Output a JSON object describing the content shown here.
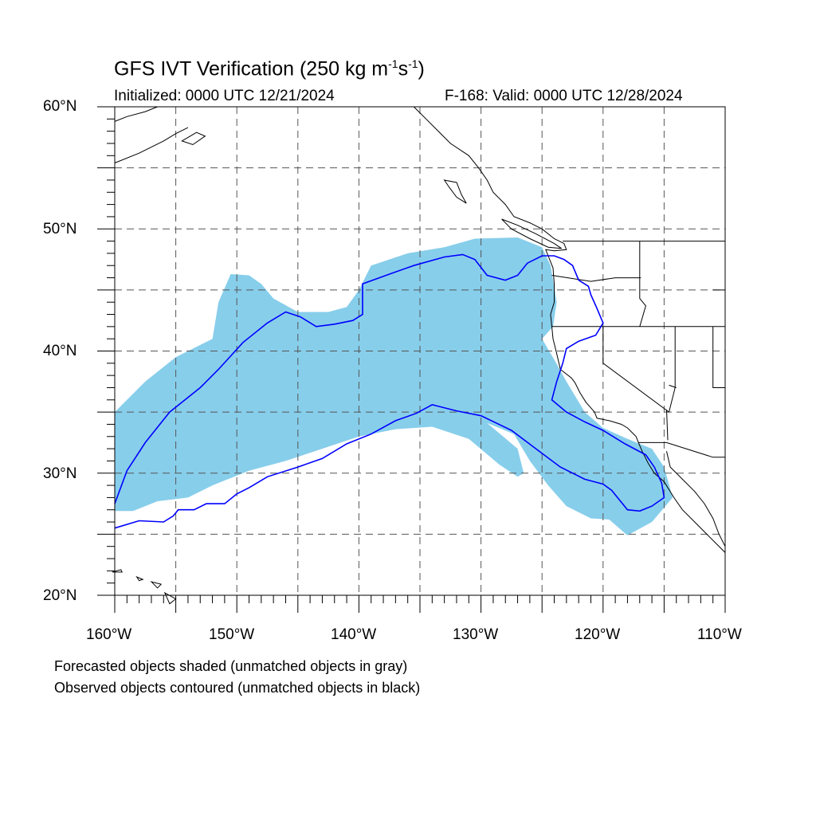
{
  "title": {
    "main": "GFS IVT Verification (250 kg m",
    "exp1": "-1",
    "mid": "s",
    "exp2": "-1",
    "end": ")"
  },
  "initialized": "Initialized: 0000 UTC 12/21/2024",
  "valid": "F-168: Valid: 0000 UTC 12/28/2024",
  "lat_labels": [
    "60°N",
    "50°N",
    "40°N",
    "30°N",
    "20°N"
  ],
  "lon_labels": [
    "160°W",
    "150°W",
    "140°W",
    "130°W",
    "120°W",
    "110°W"
  ],
  "notes": [
    "Forecasted objects shaded (unmatched objects in gray)",
    "Observed objects contoured (unmatched objects in black)"
  ],
  "extent": {
    "lon": [
      -160,
      -110
    ],
    "lat": [
      20,
      60
    ]
  },
  "colors": {
    "forecast_fill": "#87CEEB",
    "observed_contour": "#0000FF",
    "coast": "#000000",
    "grid": "#555555"
  },
  "forecast_object": {
    "outline": [
      [
        -160,
        35
      ],
      [
        -157.5,
        37.5
      ],
      [
        -155,
        39.5
      ],
      [
        -152,
        41
      ],
      [
        -151.5,
        44
      ],
      [
        -150.5,
        46.3
      ],
      [
        -149,
        46.2
      ],
      [
        -148,
        45.5
      ],
      [
        -147,
        44.3
      ],
      [
        -145,
        43.2
      ],
      [
        -142.5,
        43.2
      ],
      [
        -141,
        43.6
      ],
      [
        -140,
        45
      ],
      [
        -139,
        47
      ],
      [
        -136,
        48
      ],
      [
        -133,
        48.5
      ],
      [
        -130.5,
        49.2
      ],
      [
        -127,
        49.3
      ],
      [
        -125,
        48.5
      ],
      [
        -124.3,
        47
      ],
      [
        -123.8,
        44
      ],
      [
        -124.1,
        42
      ],
      [
        -125,
        41
      ],
      [
        -124,
        39.3
      ],
      [
        -123,
        37.5
      ],
      [
        -121.5,
        35
      ],
      [
        -120,
        33.7
      ],
      [
        -118,
        32.8
      ],
      [
        -116,
        32
      ],
      [
        -115,
        30.5
      ],
      [
        -114.3,
        28
      ],
      [
        -116,
        26
      ],
      [
        -118,
        24.9
      ],
      [
        -119.5,
        26.2
      ],
      [
        -121,
        26.3
      ],
      [
        -123,
        27.3
      ],
      [
        -124.5,
        29
      ],
      [
        -126,
        31
      ],
      [
        -127.3,
        33.2
      ],
      [
        -129.5,
        34.1
      ],
      [
        -127,
        32
      ],
      [
        -126.5,
        30
      ],
      [
        -127,
        29.7
      ],
      [
        -128.5,
        30.7
      ],
      [
        -131,
        32.8
      ],
      [
        -134,
        33.8
      ],
      [
        -137,
        33.6
      ],
      [
        -140,
        33
      ],
      [
        -143,
        32
      ],
      [
        -146,
        31
      ],
      [
        -149,
        30.2
      ],
      [
        -152,
        29
      ],
      [
        -154,
        28
      ],
      [
        -156.5,
        27.7
      ],
      [
        -158.5,
        26.9
      ],
      [
        -160,
        26.9
      ]
    ]
  },
  "observed_object": {
    "contour": [
      [
        -160,
        27.5
      ],
      [
        -159,
        30.2
      ],
      [
        -157.5,
        32.5
      ],
      [
        -155.5,
        35
      ],
      [
        -153,
        37
      ],
      [
        -151.5,
        38.5
      ],
      [
        -149.5,
        40.7
      ],
      [
        -147.5,
        42.3
      ],
      [
        -146,
        43.2
      ],
      [
        -144.8,
        42.8
      ],
      [
        -143.5,
        42
      ],
      [
        -142,
        42.2
      ],
      [
        -140.5,
        42.5
      ],
      [
        -139.7,
        43
      ],
      [
        -139.7,
        45.5
      ],
      [
        -137.5,
        46.3
      ],
      [
        -135.5,
        47
      ],
      [
        -133,
        47.7
      ],
      [
        -131.5,
        47.9
      ],
      [
        -130.5,
        47.5
      ],
      [
        -129.5,
        46.2
      ],
      [
        -128,
        45.8
      ],
      [
        -127,
        46.2
      ],
      [
        -126.2,
        47.2
      ],
      [
        -125,
        47.8
      ],
      [
        -124,
        47.8
      ],
      [
        -123.2,
        47.5
      ],
      [
        -122.5,
        47
      ],
      [
        -122,
        45.8
      ],
      [
        -121.2,
        45.3
      ],
      [
        -121,
        44.6
      ],
      [
        -120.5,
        43.5
      ],
      [
        -120,
        42.3
      ],
      [
        -120.6,
        41.3
      ],
      [
        -122,
        40.8
      ],
      [
        -123,
        40.2
      ],
      [
        -123.3,
        39
      ],
      [
        -123.8,
        37.5
      ],
      [
        -124.2,
        36
      ],
      [
        -123,
        35
      ],
      [
        -121.5,
        34.2
      ],
      [
        -120,
        33.5
      ],
      [
        -118.2,
        32.4
      ],
      [
        -116.5,
        31.5
      ],
      [
        -115.8,
        30.5
      ],
      [
        -115.2,
        29.2
      ],
      [
        -115,
        28
      ],
      [
        -116,
        27.3
      ],
      [
        -117,
        26.9
      ],
      [
        -118,
        27
      ],
      [
        -119.3,
        28.6
      ],
      [
        -120,
        29.1
      ],
      [
        -121.5,
        29.5
      ],
      [
        -123.5,
        30.5
      ],
      [
        -125.5,
        32
      ],
      [
        -127.5,
        33.5
      ],
      [
        -130,
        34.7
      ],
      [
        -132,
        35.1
      ],
      [
        -134,
        35.6
      ],
      [
        -135.3,
        34.9
      ],
      [
        -137,
        34.3
      ],
      [
        -139,
        33.2
      ],
      [
        -141,
        32.4
      ],
      [
        -143,
        31.2
      ],
      [
        -145,
        30.5
      ],
      [
        -147.5,
        29.7
      ],
      [
        -149,
        28.8
      ],
      [
        -150,
        28.3
      ],
      [
        -151,
        27.5
      ],
      [
        -152.5,
        27.5
      ],
      [
        -153.5,
        27
      ],
      [
        -154.8,
        27
      ],
      [
        -155.2,
        26.5
      ],
      [
        -156,
        26
      ],
      [
        -158,
        26.1
      ],
      [
        -160,
        25.5
      ]
    ]
  },
  "coastline": [
    [
      -135.5,
      60
    ],
    [
      -134.5,
      59
    ],
    [
      -133.5,
      58
    ],
    [
      -132.5,
      57
    ],
    [
      -131,
      56
    ],
    [
      -130.2,
      55
    ],
    [
      -129.5,
      54
    ],
    [
      -129,
      53
    ],
    [
      -128,
      52
    ],
    [
      -127.3,
      51
    ],
    [
      -126,
      50.5
    ],
    [
      -125,
      50
    ],
    [
      -124,
      49.2
    ],
    [
      -123.2,
      48.8
    ],
    [
      -123,
      48.3
    ],
    [
      -124,
      48.2
    ],
    [
      -124.7,
      48.3
    ],
    [
      -124.1,
      46.8
    ],
    [
      -124,
      45.5
    ],
    [
      -124,
      44
    ],
    [
      -124.3,
      43
    ],
    [
      -124.2,
      42
    ],
    [
      -124.1,
      41
    ],
    [
      -123.8,
      39.8
    ],
    [
      -123.5,
      38.5
    ],
    [
      -122.6,
      37.8
    ],
    [
      -122.3,
      37.4
    ],
    [
      -121.9,
      36.6
    ],
    [
      -121.4,
      35.8
    ],
    [
      -120.7,
      35
    ],
    [
      -120.5,
      34.5
    ],
    [
      -119.5,
      34.3
    ],
    [
      -118.5,
      34
    ],
    [
      -118,
      33.7
    ],
    [
      -117.3,
      33
    ],
    [
      -117.1,
      32.5
    ],
    [
      -116.8,
      31.8
    ],
    [
      -116.3,
      30.8
    ],
    [
      -115.8,
      30
    ],
    [
      -115,
      29.3
    ],
    [
      -114.2,
      28
    ],
    [
      -113.5,
      27
    ],
    [
      -112.5,
      26
    ],
    [
      -111.5,
      25
    ],
    [
      -110,
      23.5
    ]
  ],
  "gulf_coast": [
    [
      -114.8,
      31.8
    ],
    [
      -114.5,
      30.5
    ],
    [
      -113.5,
      29.5
    ],
    [
      -112.5,
      28.5
    ],
    [
      -111.7,
      27.5
    ],
    [
      -111,
      26.3
    ],
    [
      -110.5,
      25
    ],
    [
      -110,
      24
    ]
  ],
  "alaska_coast": [
    [
      -160,
      58.8
    ],
    [
      -159,
      59.2
    ],
    [
      -157.5,
      59.6
    ],
    [
      -156.5,
      60
    ]
  ],
  "alaska_peninsula": [
    [
      -160,
      55.4
    ],
    [
      -158,
      56.2
    ],
    [
      -156,
      57.2
    ],
    [
      -155,
      57.8
    ],
    [
      -154,
      58.3
    ]
  ],
  "kodiak": [
    [
      -154.5,
      57.2
    ],
    [
      -153.3,
      57.9
    ],
    [
      -152.6,
      57.6
    ],
    [
      -153.6,
      56.9
    ],
    [
      -154.5,
      57.2
    ]
  ],
  "haida_gwaii": [
    [
      -133,
      54
    ],
    [
      -132,
      53.8
    ],
    [
      -131.6,
      52.8
    ],
    [
      -131.2,
      52.1
    ],
    [
      -132,
      52.6
    ],
    [
      -132.6,
      53.4
    ],
    [
      -133,
      54
    ]
  ],
  "vancouver_island": [
    [
      -128.3,
      50.8
    ],
    [
      -127,
      50.3
    ],
    [
      -125.5,
      49.6
    ],
    [
      -124,
      48.8
    ],
    [
      -123.4,
      48.4
    ],
    [
      -124.5,
      48.5
    ],
    [
      -126,
      49.2
    ],
    [
      -127.5,
      50
    ],
    [
      -128.3,
      50.8
    ]
  ],
  "hawaii": [
    [
      [
        -160.2,
        21.9
      ],
      [
        -159.5,
        22.1
      ],
      [
        -159.4,
        21.9
      ],
      [
        -160.2,
        21.9
      ]
    ],
    [
      [
        -158.2,
        21.5
      ],
      [
        -157.7,
        21.3
      ],
      [
        -158,
        21.2
      ],
      [
        -158.2,
        21.5
      ]
    ],
    [
      [
        -157,
        21.1
      ],
      [
        -156.2,
        20.9
      ],
      [
        -156.5,
        20.6
      ],
      [
        -157,
        21.1
      ]
    ],
    [
      [
        -155.9,
        20.2
      ],
      [
        -155,
        19.7
      ],
      [
        -155.5,
        19.3
      ],
      [
        -155.9,
        20.2
      ]
    ]
  ],
  "borders": [
    [
      [
        -123.3,
        49
      ],
      [
        -110,
        49
      ]
    ],
    [
      [
        -124.2,
        46.2
      ],
      [
        -121,
        45.7
      ],
      [
        -119,
        46
      ],
      [
        -116.9,
        46
      ]
    ],
    [
      [
        -124.2,
        42
      ],
      [
        -110,
        42
      ]
    ],
    [
      [
        -120,
        42
      ],
      [
        -120,
        39
      ],
      [
        -114.6,
        35
      ]
    ],
    [
      [
        -117.1,
        32.5
      ],
      [
        -114.8,
        32.5
      ],
      [
        -111,
        31.3
      ],
      [
        -110,
        31.3
      ]
    ],
    [
      [
        -117,
        49
      ],
      [
        -117,
        44.3
      ],
      [
        -116.5,
        43.7
      ],
      [
        -117,
        42
      ]
    ],
    [
      [
        -114.1,
        42
      ],
      [
        -114.1,
        37
      ],
      [
        -114.6,
        35
      ]
    ],
    [
      [
        -111,
        45
      ],
      [
        -110,
        45
      ]
    ],
    [
      [
        -111,
        42
      ],
      [
        -111,
        37
      ],
      [
        -110,
        37
      ]
    ],
    [
      [
        -114.7,
        32.7
      ],
      [
        -114.8,
        35.2
      ]
    ],
    [
      [
        -114.6,
        37.2
      ],
      [
        -114,
        37
      ]
    ]
  ]
}
